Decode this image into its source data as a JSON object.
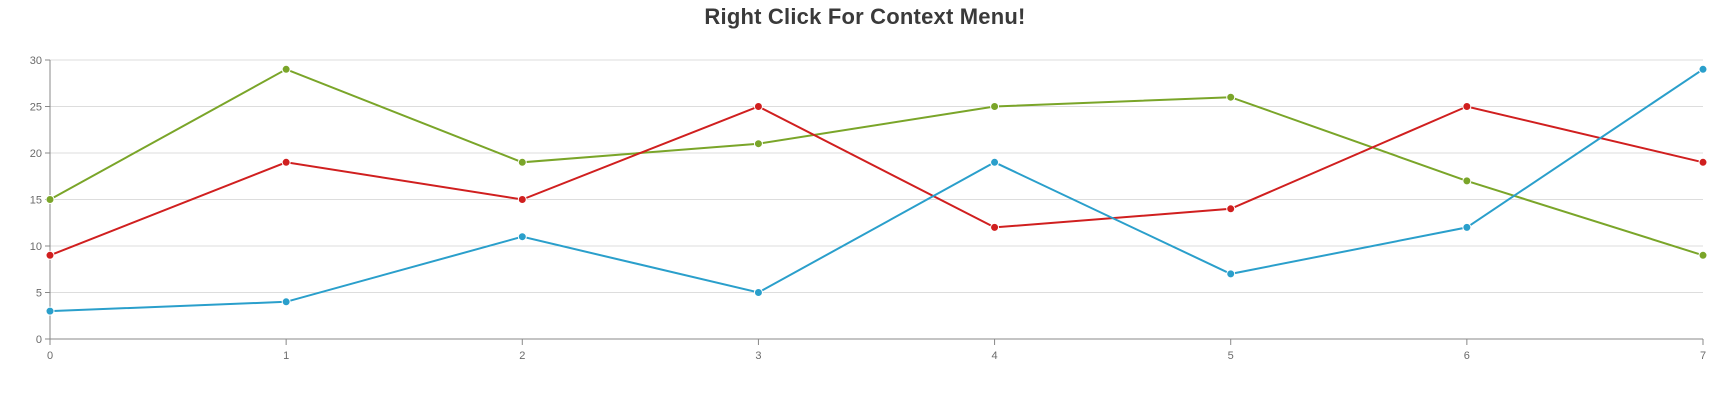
{
  "chart_data": {
    "type": "line",
    "title": "Right Click For Context Menu!",
    "xlabel": "",
    "ylabel": "",
    "x": [
      0,
      1,
      2,
      3,
      4,
      5,
      6,
      7
    ],
    "xlim": [
      0,
      7
    ],
    "ylim": [
      0,
      30
    ],
    "yticks": [
      0,
      5,
      10,
      15,
      20,
      25,
      30
    ],
    "grid": true,
    "legend": "none",
    "series": [
      {
        "color": "#7aa529",
        "values": [
          15,
          29,
          19,
          21,
          25,
          26,
          17,
          9
        ]
      },
      {
        "color": "#d01f1f",
        "values": [
          9,
          19,
          15,
          25,
          12,
          14,
          25,
          19
        ]
      },
      {
        "color": "#2a9fcb",
        "values": [
          3,
          4,
          11,
          5,
          19,
          7,
          12,
          29
        ]
      }
    ]
  }
}
